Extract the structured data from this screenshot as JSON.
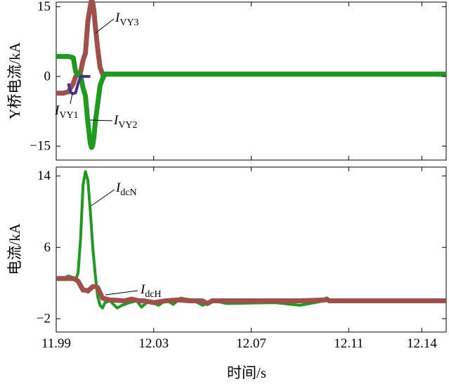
{
  "colors": {
    "red": "#A0504A",
    "green": "#1E9A1E",
    "purple": "#4B2E8C",
    "axis": "#000000"
  },
  "xlabel": "时间/s",
  "chart_data": [
    {
      "type": "line",
      "ylabel": "Y桥电流/kA",
      "ylim": [
        -18,
        16
      ],
      "yticks": [
        15,
        0,
        -15
      ],
      "ytick_labels": [
        "15",
        "0",
        "−15"
      ],
      "xlim": [
        11.99,
        12.15
      ],
      "xticks": [
        11.99,
        12.03,
        12.07,
        12.11,
        12.14
      ],
      "grid": false,
      "series": [
        {
          "name": "IVY3",
          "color": "#A0504A",
          "x": [
            11.99,
            11.9915,
            11.993,
            11.995,
            11.997,
            11.998,
            11.999,
            12.0,
            12.001,
            12.002,
            12.003,
            12.004,
            12.0045,
            12.005,
            12.0055,
            12.006,
            12.007,
            12.008,
            12.009,
            12.01,
            12.011,
            12.15
          ],
          "y": [
            -3.6,
            -3.6,
            -3.6,
            -3.3,
            -1.5,
            0,
            0.6,
            1.0,
            3.5,
            5,
            12,
            15.2,
            16.5,
            15.8,
            14,
            11,
            6,
            2,
            0.5,
            0.5,
            0.5,
            0.5
          ]
        },
        {
          "name": "IVY2",
          "color": "#1E9A1E",
          "x": [
            11.99,
            11.993,
            11.995,
            11.997,
            11.998,
            11.999,
            12.0,
            12.001,
            12.002,
            12.003,
            12.004,
            12.0045,
            12.005,
            12.0055,
            12.006,
            12.007,
            12.008,
            12.009,
            12.01,
            12.011,
            12.15
          ],
          "y": [
            4.3,
            4.3,
            4.3,
            4.0,
            1.0,
            0.5,
            0.3,
            -2.5,
            -4.2,
            -10,
            -14.5,
            -15.3,
            -14.8,
            -13,
            -10,
            -6,
            -2,
            -0.5,
            0.5,
            0.5,
            0.5
          ]
        },
        {
          "name": "IVY1",
          "color": "#4B2E8C",
          "x": [
            11.995,
            11.996,
            11.997,
            11.998,
            11.999,
            12.0,
            12.001,
            12.002,
            12.003,
            12.004
          ],
          "y": [
            -1.5,
            -3.5,
            -3.7,
            -3.5,
            -1.5,
            0,
            0,
            0,
            0,
            0
          ]
        }
      ],
      "annotations": [
        {
          "base": "I",
          "sub": "VY3"
        },
        {
          "base": "I",
          "sub": "VY2"
        },
        {
          "base": "I",
          "sub": "VY1"
        }
      ]
    },
    {
      "type": "line",
      "ylabel": "电流/kA",
      "ylim": [
        -3.5,
        15
      ],
      "yticks": [
        14,
        6,
        -2
      ],
      "ytick_labels": [
        "14",
        "6",
        "−2"
      ],
      "xlim": [
        11.99,
        12.15
      ],
      "xticks": [
        11.99,
        12.03,
        12.07,
        12.11,
        12.14
      ],
      "xtick_labels": [
        "11.99",
        "12.03",
        "12.07",
        "12.11",
        "12.14"
      ],
      "grid": false,
      "series": [
        {
          "name": "IdcN",
          "color": "#1E9A1E",
          "x": [
            11.99,
            11.993,
            11.995,
            11.997,
            11.998,
            11.999,
            12.0,
            12.001,
            12.002,
            12.003,
            12.004,
            12.005,
            12.006,
            12.007,
            12.008,
            12.009,
            12.01,
            12.012,
            12.015,
            12.017,
            12.02,
            12.023,
            12.025,
            12.028,
            12.032,
            12.035,
            12.038,
            12.041,
            12.046,
            12.05,
            12.055,
            12.06,
            12.08,
            12.09,
            12.1,
            12.105,
            12.11,
            12.15
          ],
          "y": [
            2.5,
            2.5,
            2.8,
            2.6,
            2.3,
            3.2,
            7,
            13,
            14.5,
            13.5,
            10,
            6,
            3,
            0.5,
            -0.5,
            -0.8,
            -0.2,
            0,
            -0.8,
            -0.5,
            -0.2,
            0,
            -0.7,
            0,
            -0.5,
            0.1,
            -0.4,
            0.3,
            0.1,
            -0.5,
            0,
            -0.3,
            -0.2,
            -0.5,
            0,
            0,
            0,
            0
          ]
        },
        {
          "name": "IdcH",
          "color": "#A0504A",
          "x": [
            11.99,
            11.997,
            11.998,
            11.999,
            12.0,
            12.001,
            12.002,
            12.003,
            12.005,
            12.006,
            12.007,
            12.009,
            12.012,
            12.018,
            12.021,
            12.024,
            12.026,
            12.03,
            12.035,
            12.04,
            12.045,
            12.05,
            12.052,
            12.054,
            12.06,
            12.08,
            12.09,
            12.1,
            12.101,
            12.102,
            12.15
          ],
          "y": [
            2.5,
            2.5,
            2.4,
            2.2,
            1.7,
            1.2,
            1.2,
            1.1,
            1.6,
            1.6,
            1.5,
            0.3,
            0.1,
            0,
            0.2,
            0,
            0,
            -0.2,
            0,
            0.1,
            0,
            0,
            -0.3,
            0,
            0,
            0,
            0,
            0.1,
            0.2,
            0,
            0
          ]
        }
      ],
      "annotations": [
        {
          "base": "I",
          "sub": "dcN"
        },
        {
          "base": "I",
          "sub": "dcH"
        }
      ]
    }
  ]
}
